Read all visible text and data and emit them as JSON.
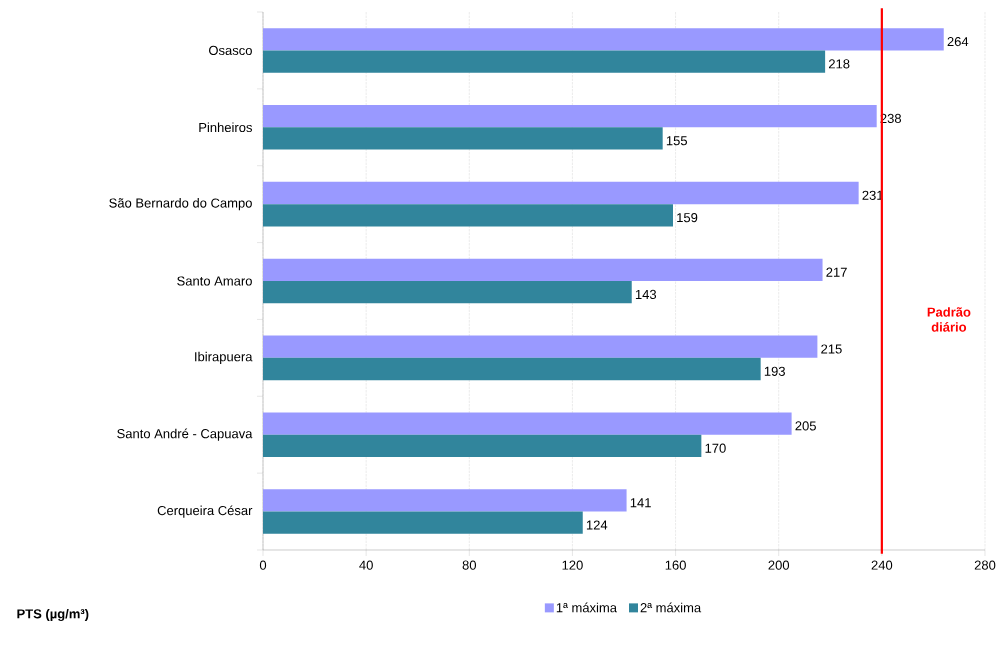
{
  "chart_data": {
    "type": "bar",
    "orientation": "horizontal",
    "categories": [
      "Osasco",
      "Pinheiros",
      "São Bernardo do Campo",
      "Santo Amaro",
      "Ibirapuera",
      "Santo André - Capuava",
      "Cerqueira César"
    ],
    "series": [
      {
        "name": "1ª máxima",
        "color": "#9999ff",
        "values": [
          264,
          238,
          231,
          217,
          215,
          205,
          141
        ]
      },
      {
        "name": "2ª máxima",
        "color": "#31859c",
        "values": [
          218,
          155,
          159,
          143,
          193,
          170,
          124
        ]
      }
    ],
    "xlim": [
      0,
      280
    ],
    "xticks": [
      0,
      40,
      80,
      120,
      160,
      200,
      240,
      280
    ],
    "grid": "x",
    "legend": "bottom",
    "data_labels": true,
    "ref_lines": [
      {
        "axis": "x",
        "value": 240,
        "label": "Padrão diário",
        "color": "#ff0000"
      }
    ],
    "annotations": [
      "PTS (µg/m³)"
    ]
  }
}
